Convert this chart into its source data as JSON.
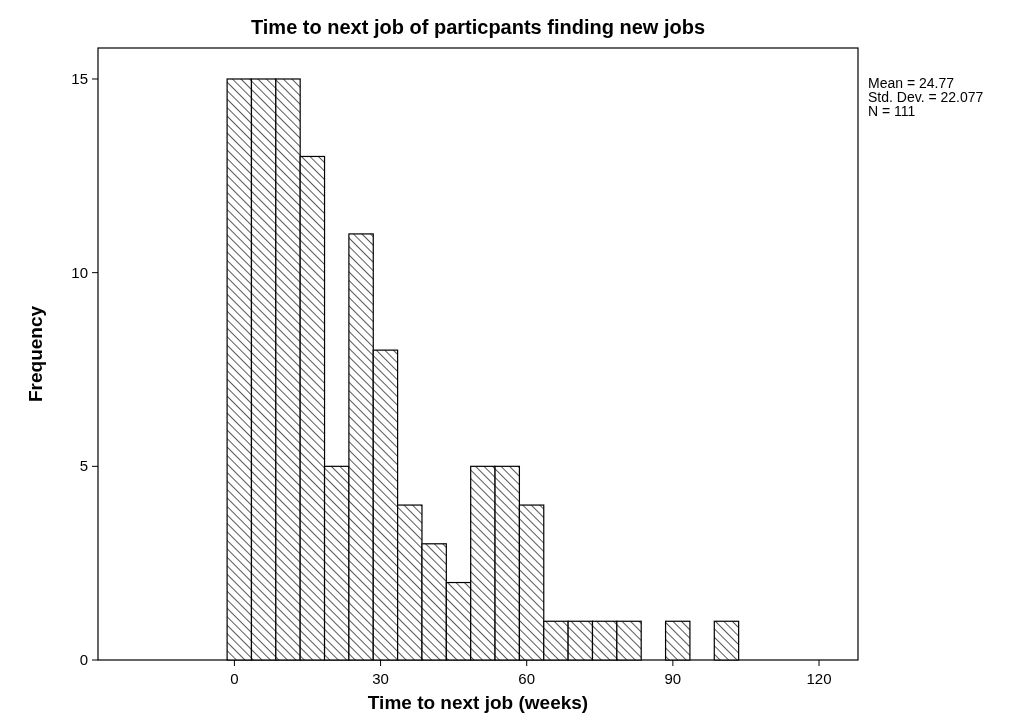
{
  "chart_data": {
    "type": "histogram",
    "title": "Time to next job of particpants finding new jobs",
    "xlabel": "Time to next job (weeks)",
    "ylabel": "Frequency",
    "bins": [
      -1.5,
      3.5,
      8.5,
      13.5,
      18.5,
      23.5,
      28.5,
      33.5,
      38.5,
      43.5,
      48.5,
      53.5,
      58.5,
      63.5,
      68.5,
      73.5,
      78.5,
      83.5,
      88.5,
      93.5,
      98.5,
      103.5
    ],
    "values": [
      15,
      15,
      15,
      13,
      5,
      11,
      8,
      4,
      3,
      2,
      5,
      5,
      4,
      1,
      1,
      1,
      1,
      0,
      1,
      0,
      1
    ],
    "color": "#000000",
    "xlim": [
      -28,
      128
    ],
    "xticks": [
      0,
      30,
      60,
      90,
      120
    ],
    "ylim": [
      0,
      15.8
    ],
    "yticks": [
      0,
      5,
      10,
      15
    ],
    "annotations": [
      "Mean = 24.77",
      "Std. Dev. = 22.077",
      "N = 111"
    ]
  }
}
